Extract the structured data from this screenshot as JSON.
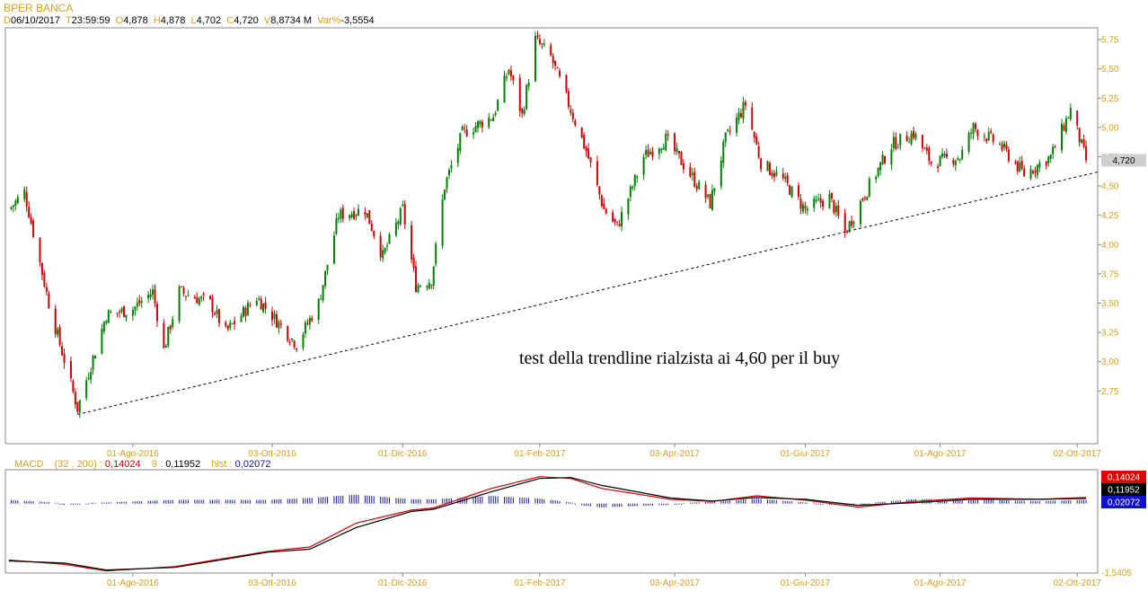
{
  "header": {
    "title": "BPER BANCA",
    "quote": [
      {
        "k": "D",
        "v": "06/10/2017"
      },
      {
        "k": "T",
        "v": "23:59:59"
      },
      {
        "k": "O",
        "v": "4,878"
      },
      {
        "k": "H",
        "v": "4,878"
      },
      {
        "k": "L",
        "v": "4,702"
      },
      {
        "k": "C",
        "v": "4,720"
      },
      {
        "k": "V",
        "v": "8,8734 M"
      },
      {
        "k": "Var%",
        "v": "-3,5554"
      }
    ]
  },
  "annotation": "test della trendline rialzista ai 4,60 per il buy",
  "macd_header": {
    "name": "MACD",
    "params": "(32 , 200) :",
    "macd_value": "0,14024",
    "signal_label": "9 :",
    "signal_value": "0,11952",
    "hist_label": "hist :",
    "hist_value": "0,02072"
  },
  "colors": {
    "up": "#008000",
    "down": "#cc0000",
    "axis_text": "#d4a017",
    "macd_line": "#cc0000",
    "signal_line": "#000000",
    "hist": "#1a1a9a"
  },
  "chart_data": [
    {
      "type": "candlestick",
      "title": "BPER BANCA",
      "x_ticks": [
        "01-Ago-2016",
        "03-Ott-2016",
        "01-Dic-2016",
        "01-Feb-2017",
        "03-Apr-2017",
        "01-Giu-2017",
        "01-Ago-2017",
        "02-Ott-2017"
      ],
      "y_ticks": [
        "2,75",
        "3,00",
        "3,25",
        "3,50",
        "3,75",
        "4,00",
        "4,25",
        "4,50",
        "4,75",
        "5,00",
        "5,25",
        "5,50",
        "5,75"
      ],
      "ylim": [
        2.3,
        5.85
      ],
      "last_value_label": "4,720",
      "approx_close_path": [
        {
          "x": "2016-06-06",
          "y": 4.3
        },
        {
          "x": "2016-06-13",
          "y": 4.45
        },
        {
          "x": "2016-06-24",
          "y": 3.5
        },
        {
          "x": "2016-07-07",
          "y": 2.6
        },
        {
          "x": "2016-07-20",
          "y": 3.4
        },
        {
          "x": "2016-08-01",
          "y": 3.45
        },
        {
          "x": "2016-08-10",
          "y": 3.6
        },
        {
          "x": "2016-08-15",
          "y": 3.1
        },
        {
          "x": "2016-08-22",
          "y": 3.6
        },
        {
          "x": "2016-09-05",
          "y": 3.5
        },
        {
          "x": "2016-09-12",
          "y": 3.25
        },
        {
          "x": "2016-09-26",
          "y": 3.55
        },
        {
          "x": "2016-10-05",
          "y": 3.35
        },
        {
          "x": "2016-10-14",
          "y": 3.15
        },
        {
          "x": "2016-10-24",
          "y": 3.5
        },
        {
          "x": "2016-11-02",
          "y": 4.25
        },
        {
          "x": "2016-11-14",
          "y": 4.3
        },
        {
          "x": "2016-11-22",
          "y": 3.9
        },
        {
          "x": "2016-12-01",
          "y": 4.3
        },
        {
          "x": "2016-12-07",
          "y": 3.65
        },
        {
          "x": "2016-12-14",
          "y": 3.7
        },
        {
          "x": "2016-12-20",
          "y": 4.5
        },
        {
          "x": "2016-12-28",
          "y": 4.95
        },
        {
          "x": "2017-01-11",
          "y": 5.1
        },
        {
          "x": "2017-01-18",
          "y": 5.5
        },
        {
          "x": "2017-01-24",
          "y": 5.1
        },
        {
          "x": "2017-01-30",
          "y": 5.75
        },
        {
          "x": "2017-02-06",
          "y": 5.6
        },
        {
          "x": "2017-02-14",
          "y": 5.2
        },
        {
          "x": "2017-02-22",
          "y": 4.8
        },
        {
          "x": "2017-03-02",
          "y": 4.3
        },
        {
          "x": "2017-03-08",
          "y": 4.15
        },
        {
          "x": "2017-03-20",
          "y": 4.75
        },
        {
          "x": "2017-03-30",
          "y": 4.9
        },
        {
          "x": "2017-04-10",
          "y": 4.6
        },
        {
          "x": "2017-04-19",
          "y": 4.35
        },
        {
          "x": "2017-04-26",
          "y": 4.9
        },
        {
          "x": "2017-05-05",
          "y": 5.2
        },
        {
          "x": "2017-05-12",
          "y": 4.7
        },
        {
          "x": "2017-05-22",
          "y": 4.55
        },
        {
          "x": "2017-06-01",
          "y": 4.3
        },
        {
          "x": "2017-06-12",
          "y": 4.4
        },
        {
          "x": "2017-06-19",
          "y": 4.1
        },
        {
          "x": "2017-06-27",
          "y": 4.4
        },
        {
          "x": "2017-07-10",
          "y": 4.85
        },
        {
          "x": "2017-07-20",
          "y": 4.95
        },
        {
          "x": "2017-07-28",
          "y": 4.7
        },
        {
          "x": "2017-08-10",
          "y": 4.75
        },
        {
          "x": "2017-08-16",
          "y": 5.0
        },
        {
          "x": "2017-08-28",
          "y": 4.85
        },
        {
          "x": "2017-09-08",
          "y": 4.6
        },
        {
          "x": "2017-09-20",
          "y": 4.75
        },
        {
          "x": "2017-09-29",
          "y": 5.15
        },
        {
          "x": "2017-10-06",
          "y": 4.72
        }
      ],
      "trendline": {
        "from": {
          "x": "2016-07-07",
          "y": 2.55
        },
        "to": {
          "x": "2017-10-12",
          "y": 4.62
        },
        "style": "dashed"
      }
    },
    {
      "type": "line",
      "title": "MACD (32 , 200)",
      "x_ticks": [
        "01-Ago-2016",
        "03-Ott-2016",
        "01-Dic-2016",
        "01-Feb-2017",
        "03-Apr-2017",
        "01-Giu-2017",
        "01-Ago-2017",
        "02-Ott-2017"
      ],
      "y_ticks": [
        "-1,5405"
      ],
      "value_labels": [
        "0,14024",
        "0,11952",
        "0,02072"
      ],
      "series": [
        {
          "name": "MACD",
          "color": "#cc0000",
          "points": [
            {
              "x": "2016-06-06",
              "y": -1.3
            },
            {
              "x": "2016-07-01",
              "y": -1.4
            },
            {
              "x": "2016-07-20",
              "y": -1.55
            },
            {
              "x": "2016-08-20",
              "y": -1.45
            },
            {
              "x": "2016-10-01",
              "y": -1.1
            },
            {
              "x": "2016-10-20",
              "y": -1.0
            },
            {
              "x": "2016-11-10",
              "y": -0.45
            },
            {
              "x": "2016-12-05",
              "y": -0.15
            },
            {
              "x": "2016-12-15",
              "y": -0.1
            },
            {
              "x": "2017-01-10",
              "y": 0.35
            },
            {
              "x": "2017-02-01",
              "y": 0.62
            },
            {
              "x": "2017-02-15",
              "y": 0.58
            },
            {
              "x": "2017-03-01",
              "y": 0.35
            },
            {
              "x": "2017-04-01",
              "y": 0.1
            },
            {
              "x": "2017-04-20",
              "y": 0.05
            },
            {
              "x": "2017-05-10",
              "y": 0.18
            },
            {
              "x": "2017-06-01",
              "y": 0.08
            },
            {
              "x": "2017-06-25",
              "y": -0.08
            },
            {
              "x": "2017-07-20",
              "y": 0.05
            },
            {
              "x": "2017-08-15",
              "y": 0.13
            },
            {
              "x": "2017-09-15",
              "y": 0.1
            },
            {
              "x": "2017-10-06",
              "y": 0.14024
            }
          ]
        },
        {
          "name": "9",
          "color": "#000000",
          "points": [
            {
              "x": "2016-06-06",
              "y": -1.32
            },
            {
              "x": "2016-07-01",
              "y": -1.37
            },
            {
              "x": "2016-07-20",
              "y": -1.53
            },
            {
              "x": "2016-08-20",
              "y": -1.47
            },
            {
              "x": "2016-10-01",
              "y": -1.12
            },
            {
              "x": "2016-10-20",
              "y": -1.05
            },
            {
              "x": "2016-11-10",
              "y": -0.55
            },
            {
              "x": "2016-12-05",
              "y": -0.18
            },
            {
              "x": "2016-12-15",
              "y": -0.13
            },
            {
              "x": "2017-01-10",
              "y": 0.27
            },
            {
              "x": "2017-02-01",
              "y": 0.58
            },
            {
              "x": "2017-02-15",
              "y": 0.6
            },
            {
              "x": "2017-03-01",
              "y": 0.42
            },
            {
              "x": "2017-04-01",
              "y": 0.13
            },
            {
              "x": "2017-04-20",
              "y": 0.06
            },
            {
              "x": "2017-05-10",
              "y": 0.14
            },
            {
              "x": "2017-06-01",
              "y": 0.1
            },
            {
              "x": "2017-06-25",
              "y": -0.04
            },
            {
              "x": "2017-07-20",
              "y": 0.02
            },
            {
              "x": "2017-08-15",
              "y": 0.1
            },
            {
              "x": "2017-09-15",
              "y": 0.1
            },
            {
              "x": "2017-10-06",
              "y": 0.11952
            }
          ]
        }
      ],
      "histogram": {
        "name": "hist",
        "color": "#1a1a9a",
        "last_value": 0.02072
      }
    }
  ]
}
